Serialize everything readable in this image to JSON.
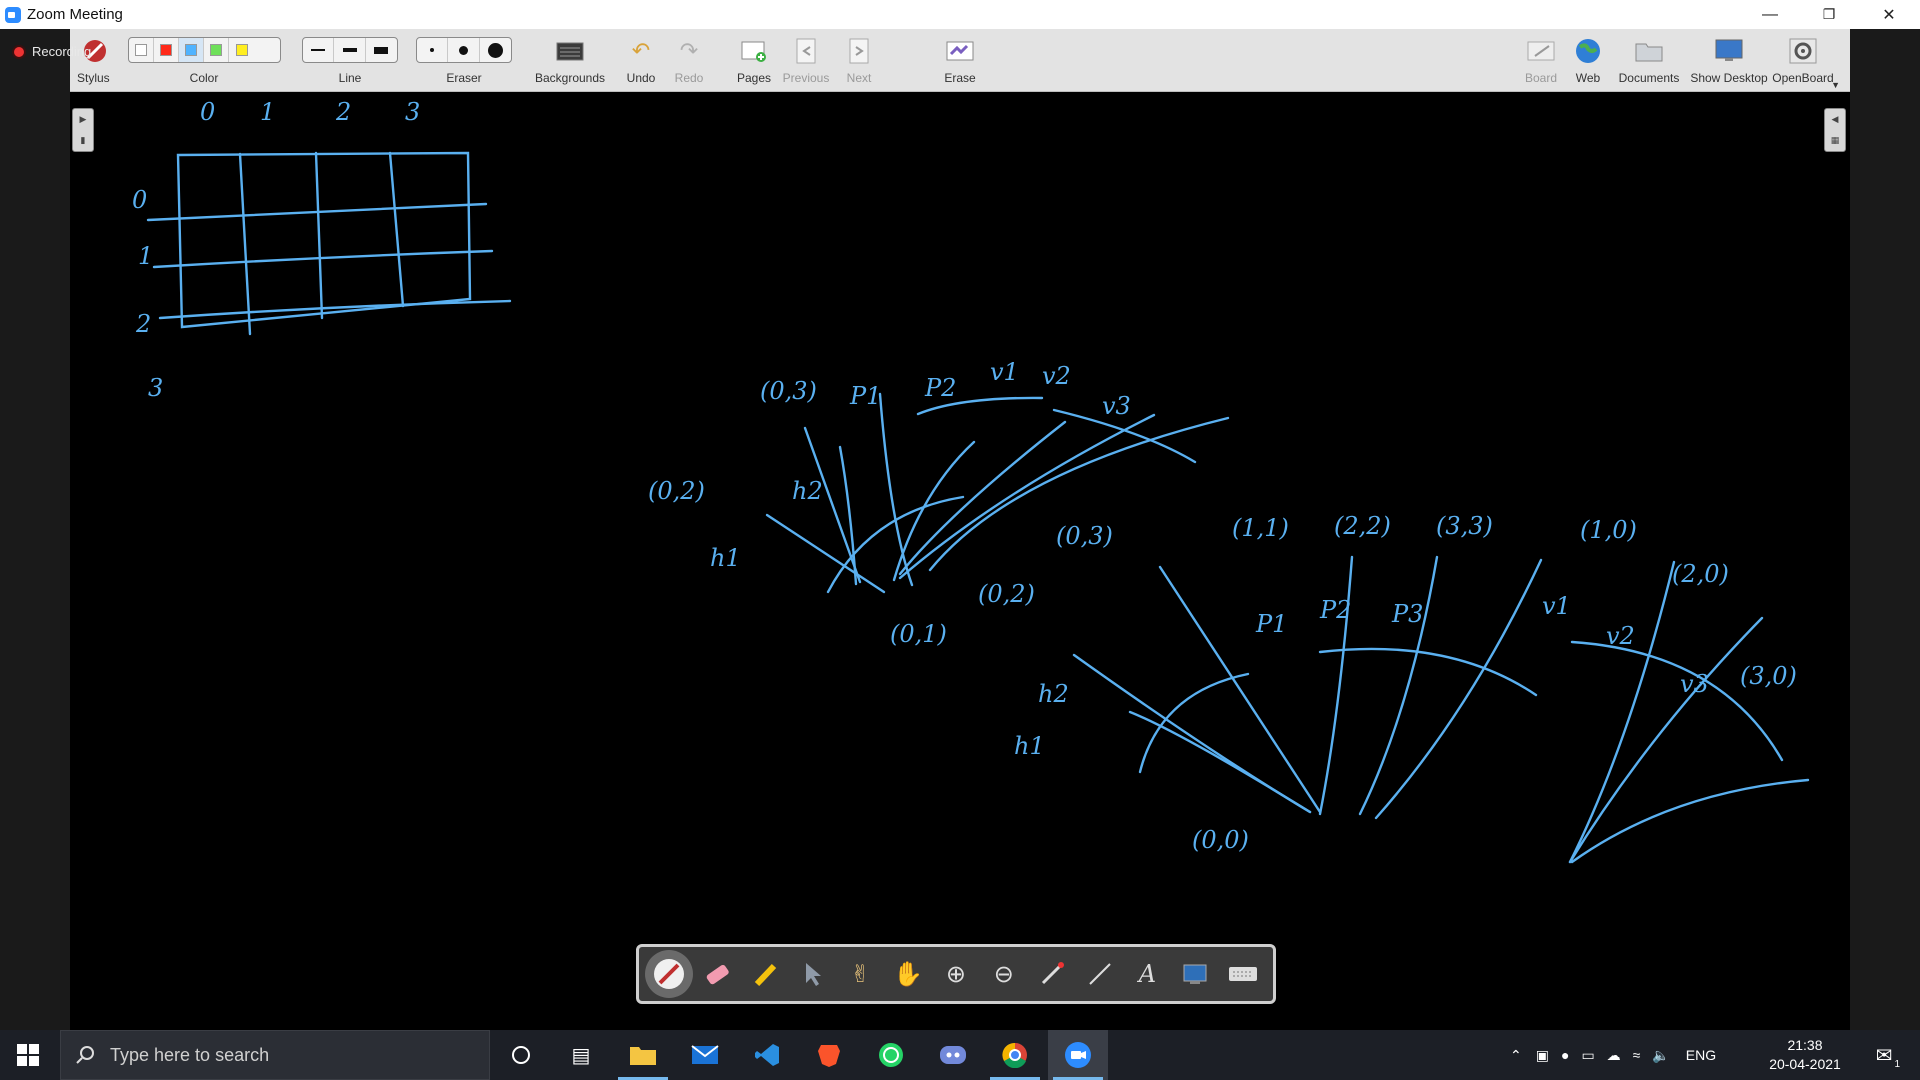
{
  "window": {
    "title": "Zoom Meeting",
    "minimize_icon": "minimize-icon",
    "restore_icon": "restore-icon",
    "close_icon": "close-icon"
  },
  "zoom": {
    "recording_label": "Recording"
  },
  "openboard": {
    "tools": {
      "stylus": "Stylus",
      "color": "Color",
      "line": "Line",
      "eraser": "Eraser",
      "backgrounds": "Backgrounds",
      "undo": "Undo",
      "redo": "Redo",
      "pages": "Pages",
      "previous": "Previous",
      "next": "Next",
      "erase": "Erase",
      "board": "Board",
      "web": "Web",
      "documents": "Documents",
      "show_desktop": "Show Desktop",
      "openboard": "OpenBoard"
    },
    "colors": [
      "#ffffff",
      "#ff2a1a",
      "#4fb3ff",
      "#6fe05a",
      "#ffee20"
    ],
    "ink_color": "#5ab0f0"
  },
  "board": {
    "grid_col_labels": [
      "0",
      "1",
      "2",
      "3"
    ],
    "grid_row_labels": [
      "0",
      "1",
      "2",
      "3"
    ],
    "notes": [
      "(0,3)",
      "P1",
      "P2",
      "v1",
      "v2",
      "v3",
      "(0,2)",
      "h2",
      "h1",
      "(0,1)",
      "(0,2)",
      "(0,3)",
      "h2",
      "h1",
      "(1,1)",
      "(2,2)",
      "(3,3)",
      "P1",
      "P2",
      "P3",
      "(0,0)",
      "(1,0)",
      "(2,0)",
      "v1",
      "v2",
      "v3",
      "(3,0)"
    ]
  },
  "taskbar": {
    "search_placeholder": "Type here to search",
    "language": "ENG",
    "time": "21:38",
    "date": "20-04-2021",
    "notification_count": "1"
  }
}
